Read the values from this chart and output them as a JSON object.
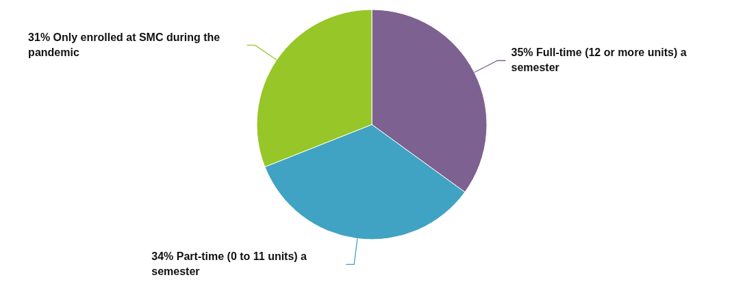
{
  "chart_data": {
    "type": "pie",
    "categories": [
      "Full-time (12 or more units) a semester",
      "Part-time (0 to 11 units) a semester",
      "Only enrolled at SMC during the pandemic"
    ],
    "values": [
      35,
      34,
      31
    ],
    "value_labels": [
      "35%",
      "34%",
      "31%"
    ],
    "colors": [
      "#7d6190",
      "#41a3c3",
      "#96c628"
    ]
  }
}
